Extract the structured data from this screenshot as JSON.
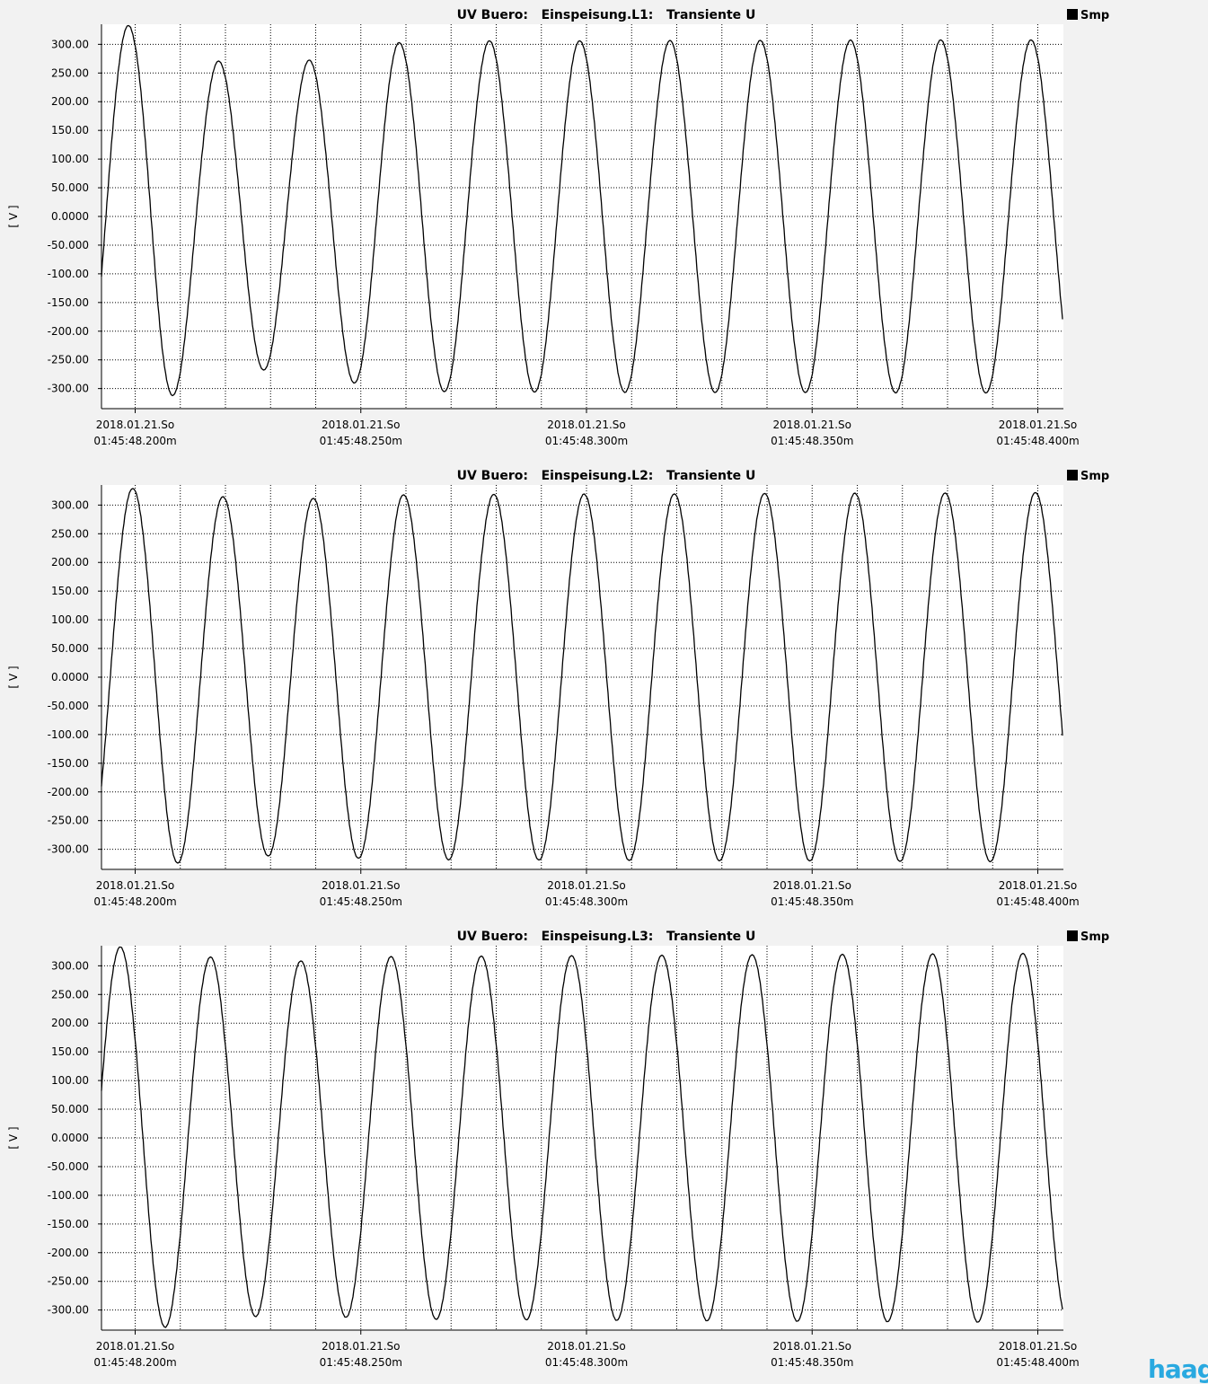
{
  "logo_text": "haag",
  "colors": {
    "background": "#f2f2f2",
    "plot_bg": "#ffffff",
    "trace": "#000000",
    "logo": "#29a9e0"
  },
  "chart_data": [
    {
      "type": "line",
      "title": "UV Buero:   Einspeisung.L1:   Transiente U",
      "legend": "Smp",
      "legend_position": "top-right",
      "ylabel": "[ V ]",
      "grid": true,
      "ylim": [
        -335,
        335
      ],
      "xlim": [
        -10.8,
        32.2
      ],
      "x_unit": "ms from 01:45:48.200",
      "yticks": [
        "300.00",
        "250.00",
        "200.00",
        "150.00",
        "100.00",
        "50.000",
        "0.0000",
        "-50.000",
        "-100.00",
        "-150.00",
        "-200.00",
        "-250.00",
        "-300.00"
      ],
      "ytick_values": [
        300,
        250,
        200,
        150,
        100,
        50,
        0,
        -50,
        -100,
        -150,
        -200,
        -250,
        -300
      ],
      "xticks": [
        {
          "x": 0,
          "date": "2018.01.21.So",
          "time": "01:45:48.200m"
        },
        {
          "x": 50,
          "date": "2018.01.21.So",
          "time": "01:45:48.250m"
        },
        {
          "x": 100,
          "date": "2018.01.21.So",
          "time": "01:45:48.300m"
        },
        {
          "x": 150,
          "date": "2018.01.21.So",
          "time": "01:45:48.350m"
        },
        {
          "x": 200,
          "date": "2018.01.21.So",
          "time": "01:45:48.400m"
        }
      ],
      "x_range": [
        -7.5,
        205.5
      ],
      "series": [
        {
          "amplitude": [
            [
              -7.5,
              333
            ],
            [
              5,
              333
            ],
            [
              15,
              272
            ],
            [
              35,
              266
            ],
            [
              55,
              302
            ],
            [
              70,
              306
            ],
            [
              205.5,
              308
            ]
          ],
          "phase_at_start": -0.32,
          "period": 20
        }
      ]
    },
    {
      "type": "line",
      "title": "UV Buero:   Einspeisung.L2:   Transiente U",
      "legend": "Smp",
      "legend_position": "top-right",
      "ylabel": "[ V ]",
      "grid": true,
      "ylim": [
        -335,
        335
      ],
      "yticks": [
        "300.00",
        "250.00",
        "200.00",
        "150.00",
        "100.00",
        "50.000",
        "0.0000",
        "-50.000",
        "-100.00",
        "-150.00",
        "-200.00",
        "-250.00",
        "-300.00"
      ],
      "ytick_values": [
        300,
        250,
        200,
        150,
        100,
        50,
        0,
        -50,
        -100,
        -150,
        -200,
        -250,
        -300
      ],
      "xticks": [
        {
          "x": 0,
          "date": "2018.01.21.So",
          "time": "01:45:48.200m"
        },
        {
          "x": 50,
          "date": "2018.01.21.So",
          "time": "01:45:48.250m"
        },
        {
          "x": 100,
          "date": "2018.01.21.So",
          "time": "01:45:48.300m"
        },
        {
          "x": 150,
          "date": "2018.01.21.So",
          "time": "01:45:48.350m"
        },
        {
          "x": 200,
          "date": "2018.01.21.So",
          "time": "01:45:48.400m"
        }
      ],
      "x_range": [
        -7.5,
        205.5
      ],
      "series": [
        {
          "amplitude": [
            [
              -7.5,
              328
            ],
            [
              5,
              330
            ],
            [
              15,
              316
            ],
            [
              35,
              310
            ],
            [
              55,
              318
            ],
            [
              205.5,
              322
            ]
          ],
          "phase_at_start": -0.62,
          "period": 20
        }
      ]
    },
    {
      "type": "line",
      "title": "UV Buero:   Einspeisung.L3:   Transiente U",
      "legend": "Smp",
      "legend_position": "top-right",
      "ylabel": "[ V ]",
      "grid": true,
      "ylim": [
        -335,
        335
      ],
      "yticks": [
        "300.00",
        "250.00",
        "200.00",
        "150.00",
        "100.00",
        "50.000",
        "0.0000",
        "-50.000",
        "-100.00",
        "-150.00",
        "-200.00",
        "-250.00",
        "-300.00"
      ],
      "ytick_values": [
        300,
        250,
        200,
        150,
        100,
        50,
        0,
        -50,
        -100,
        -150,
        -200,
        -250,
        -300
      ],
      "xticks": [
        {
          "x": 0,
          "date": "2018.01.21.So",
          "time": "01:45:48.200m"
        },
        {
          "x": 50,
          "date": "2018.01.21.So",
          "time": "01:45:48.250m"
        },
        {
          "x": 100,
          "date": "2018.01.21.So",
          "time": "01:45:48.300m"
        },
        {
          "x": 150,
          "date": "2018.01.21.So",
          "time": "01:45:48.350m"
        },
        {
          "x": 200,
          "date": "2018.01.21.So",
          "time": "01:45:48.400m"
        }
      ],
      "x_range": [
        -7.5,
        205.5
      ],
      "series": [
        {
          "amplitude": [
            [
              -7.5,
              333
            ],
            [
              5,
              333
            ],
            [
              15,
              316
            ],
            [
              35,
              308
            ],
            [
              55,
              316
            ],
            [
              205.5,
              322
            ]
          ],
          "phase_at_start": 0.25,
          "period": 20
        }
      ]
    }
  ]
}
